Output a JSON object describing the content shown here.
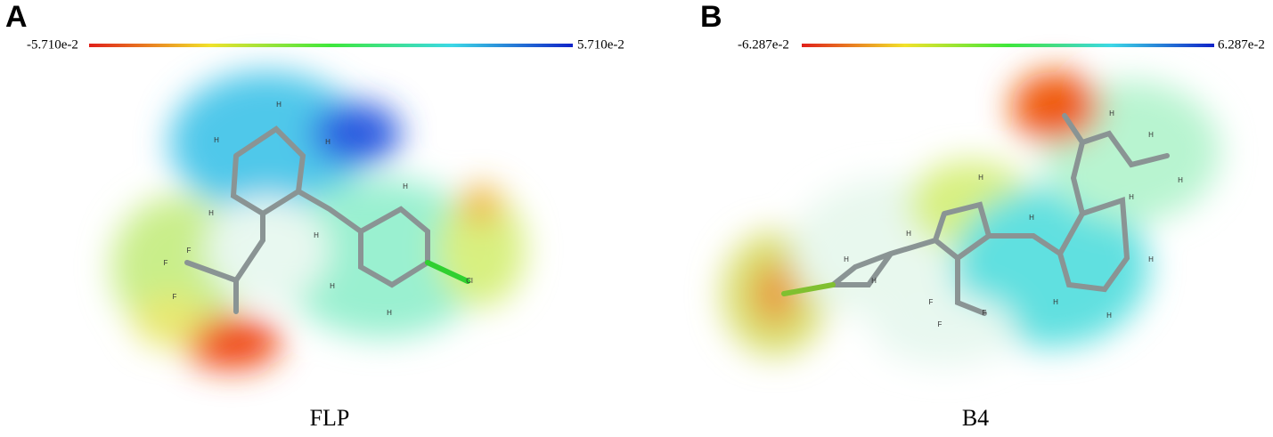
{
  "panels": [
    {
      "label": "A",
      "min_label": "-5.710e-2",
      "max_label": "5.710e-2",
      "caption": "FLP",
      "atoms": [
        "H",
        "H",
        "H",
        "H",
        "H",
        "H",
        "H",
        "H",
        "F",
        "F",
        "F",
        "Cl"
      ]
    },
    {
      "label": "B",
      "min_label": "-6.287e-2",
      "max_label": "6.287e-2",
      "caption": "B4",
      "atoms": [
        "H",
        "H",
        "H",
        "H",
        "H",
        "H",
        "H",
        "H",
        "H",
        "H",
        "H",
        "H",
        "F",
        "F",
        "F"
      ]
    }
  ]
}
